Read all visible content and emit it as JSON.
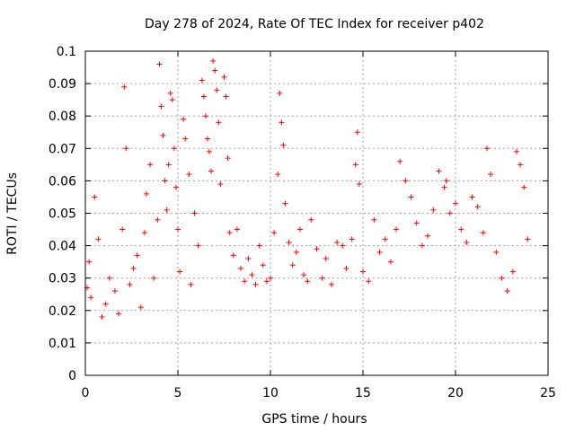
{
  "chart_data": {
    "type": "scatter",
    "title": "Day 278 of 2024, Rate Of TEC Index for receiver p402",
    "xlabel": "GPS time / hours",
    "ylabel": "ROTI / TECUs",
    "xlim": [
      0,
      25
    ],
    "ylim": [
      0,
      0.1
    ],
    "x_ticks": [
      "0",
      "5",
      "10",
      "15",
      "20",
      "25"
    ],
    "y_ticks": [
      "0",
      "0.01",
      "0.02",
      "0.03",
      "0.04",
      "0.05",
      "0.06",
      "0.07",
      "0.08",
      "0.09",
      "0.1"
    ],
    "grid": true,
    "marker": "+",
    "color": "#ff0000",
    "series": [
      {
        "x": [
          0.1,
          0.2,
          0.3,
          0.5,
          0.7,
          0.9,
          1.1,
          1.3,
          1.6,
          1.8,
          2.0,
          2.1,
          2.2,
          2.4,
          2.6,
          2.8,
          3.0,
          3.2,
          3.3,
          3.5,
          3.7,
          3.9,
          4.0,
          4.1,
          4.2,
          4.3,
          4.4,
          4.5,
          4.6,
          4.7,
          4.8,
          4.9,
          5.0,
          5.1,
          5.3,
          5.4,
          5.6,
          5.7,
          5.9,
          6.1,
          6.3,
          6.4,
          6.5,
          6.6,
          6.7,
          6.8,
          6.9,
          7.0,
          7.1,
          7.2,
          7.3,
          7.5,
          7.6,
          7.7,
          7.8,
          8.0,
          8.2,
          8.4,
          8.6,
          8.8,
          9.0,
          9.2,
          9.4,
          9.6,
          9.8,
          10.0,
          10.2,
          10.4,
          10.5,
          10.6,
          10.7,
          10.8,
          11.0,
          11.2,
          11.4,
          11.6,
          11.8,
          12.0,
          12.2,
          12.5,
          12.8,
          13.0,
          13.3,
          13.6,
          13.9,
          14.1,
          14.4,
          14.6,
          14.7,
          14.8,
          15.0,
          15.3,
          15.6,
          15.9,
          16.2,
          16.5,
          16.8,
          17.0,
          17.3,
          17.6,
          17.9,
          18.2,
          18.5,
          18.8,
          19.1,
          19.4,
          19.5,
          19.7,
          20.0,
          20.3,
          20.6,
          20.9,
          21.2,
          21.5,
          21.7,
          21.9,
          22.2,
          22.5,
          22.8,
          23.1,
          23.3,
          23.5,
          23.7,
          23.9
        ],
        "y": [
          0.027,
          0.035,
          0.024,
          0.055,
          0.042,
          0.018,
          0.022,
          0.03,
          0.026,
          0.019,
          0.045,
          0.089,
          0.07,
          0.028,
          0.033,
          0.037,
          0.021,
          0.044,
          0.056,
          0.065,
          0.03,
          0.048,
          0.096,
          0.083,
          0.074,
          0.06,
          0.051,
          0.065,
          0.087,
          0.085,
          0.07,
          0.058,
          0.045,
          0.032,
          0.079,
          0.073,
          0.062,
          0.028,
          0.05,
          0.04,
          0.091,
          0.086,
          0.08,
          0.073,
          0.069,
          0.063,
          0.097,
          0.094,
          0.088,
          0.078,
          0.059,
          0.092,
          0.086,
          0.067,
          0.044,
          0.037,
          0.045,
          0.033,
          0.029,
          0.036,
          0.031,
          0.028,
          0.04,
          0.034,
          0.029,
          0.03,
          0.044,
          0.062,
          0.087,
          0.078,
          0.071,
          0.053,
          0.041,
          0.034,
          0.038,
          0.045,
          0.031,
          0.029,
          0.048,
          0.039,
          0.03,
          0.036,
          0.028,
          0.041,
          0.04,
          0.033,
          0.042,
          0.065,
          0.075,
          0.059,
          0.032,
          0.029,
          0.048,
          0.038,
          0.042,
          0.035,
          0.045,
          0.066,
          0.06,
          0.055,
          0.047,
          0.04,
          0.043,
          0.051,
          0.063,
          0.058,
          0.06,
          0.05,
          0.053,
          0.045,
          0.041,
          0.055,
          0.052,
          0.044,
          0.07,
          0.062,
          0.038,
          0.03,
          0.026,
          0.032,
          0.069,
          0.065,
          0.058,
          0.042
        ]
      }
    ]
  }
}
